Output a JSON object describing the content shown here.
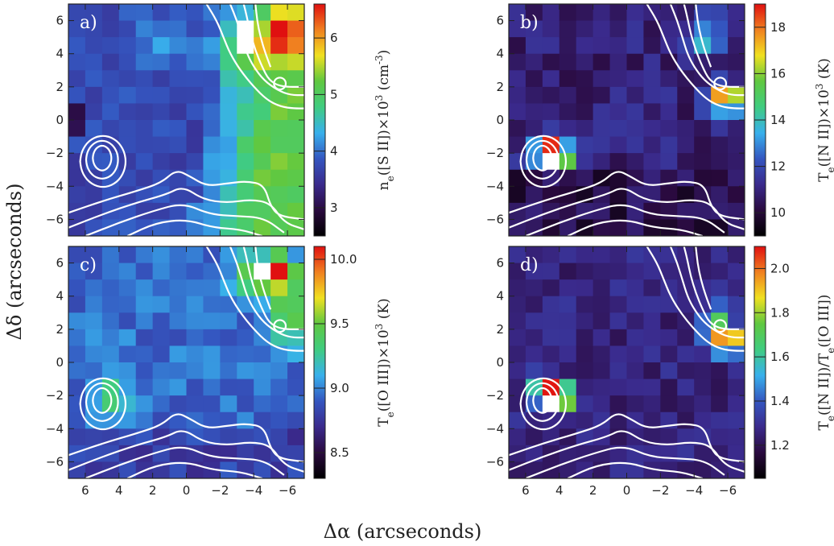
{
  "figure": {
    "xlabel": "Δα (arcseconds)",
    "ylabel": "Δδ (arcseconds)"
  },
  "chart_data": [
    {
      "type": "heatmap",
      "panel_label": "a)",
      "colorbar_label": "n_e([S II])×10^3 (cm^-3)",
      "colorbar_ticks": [
        3,
        4,
        5,
        6
      ],
      "zlim": [
        2.5,
        6.6
      ],
      "xlim": [
        7,
        -7
      ],
      "ylim": [
        -7,
        7
      ],
      "x_ticks": [
        6,
        4,
        2,
        0,
        -2,
        -4,
        -6
      ],
      "y_ticks": [
        -6,
        -4,
        -2,
        0,
        2,
        4,
        6
      ],
      "blank_pixels": [
        [
          -3.8,
          5.1
        ]
      ],
      "colormap": [
        "#000000",
        "#2a0a3f",
        "#3a2a8c",
        "#3456c0",
        "#38b0ec",
        "#40cc80",
        "#60c840",
        "#f0e020",
        "#f08020",
        "#e01010"
      ]
    },
    {
      "type": "heatmap",
      "panel_label": "b)",
      "colorbar_label": "T_e([N II])×10^3 (K)",
      "colorbar_ticks": [
        10,
        12,
        14,
        16,
        18
      ],
      "zlim": [
        9.0,
        19.0
      ],
      "xlim": [
        7,
        -7
      ],
      "ylim": [
        -7,
        7
      ],
      "x_ticks": [
        6,
        4,
        2,
        0,
        -2,
        -4,
        -6
      ],
      "y_ticks": [
        -6,
        -4,
        -2,
        0,
        2,
        4,
        6
      ],
      "blank_pixels": [
        [
          4.6,
          -2.4
        ]
      ]
    },
    {
      "type": "heatmap",
      "panel_label": "c)",
      "colorbar_label": "T_e([O III])×10^3 (K)",
      "colorbar_ticks": [
        8.5,
        9.0,
        9.5,
        10.0
      ],
      "zlim": [
        8.3,
        10.1
      ],
      "xlim": [
        7,
        -7
      ],
      "ylim": [
        -7,
        7
      ],
      "x_ticks": [
        6,
        4,
        2,
        0,
        -2,
        -4,
        -6
      ],
      "y_ticks": [
        -6,
        -4,
        -2,
        0,
        2,
        4,
        6
      ],
      "blank_pixels": [
        [
          -4.2,
          5.6
        ]
      ]
    },
    {
      "type": "heatmap",
      "panel_label": "d)",
      "colorbar_label": "T_e([N II])/T_e([O III])",
      "colorbar_ticks": [
        1.2,
        1.4,
        1.6,
        1.8,
        2.0
      ],
      "zlim": [
        1.05,
        2.1
      ],
      "xlim": [
        7,
        -7
      ],
      "ylim": [
        -7,
        7
      ],
      "x_ticks": [
        6,
        4,
        2,
        0,
        -2,
        -4,
        -6
      ],
      "y_ticks": [
        -6,
        -4,
        -2,
        0,
        2,
        4,
        6
      ],
      "blank_pixels": [
        [
          4.6,
          -2.4
        ]
      ]
    }
  ]
}
